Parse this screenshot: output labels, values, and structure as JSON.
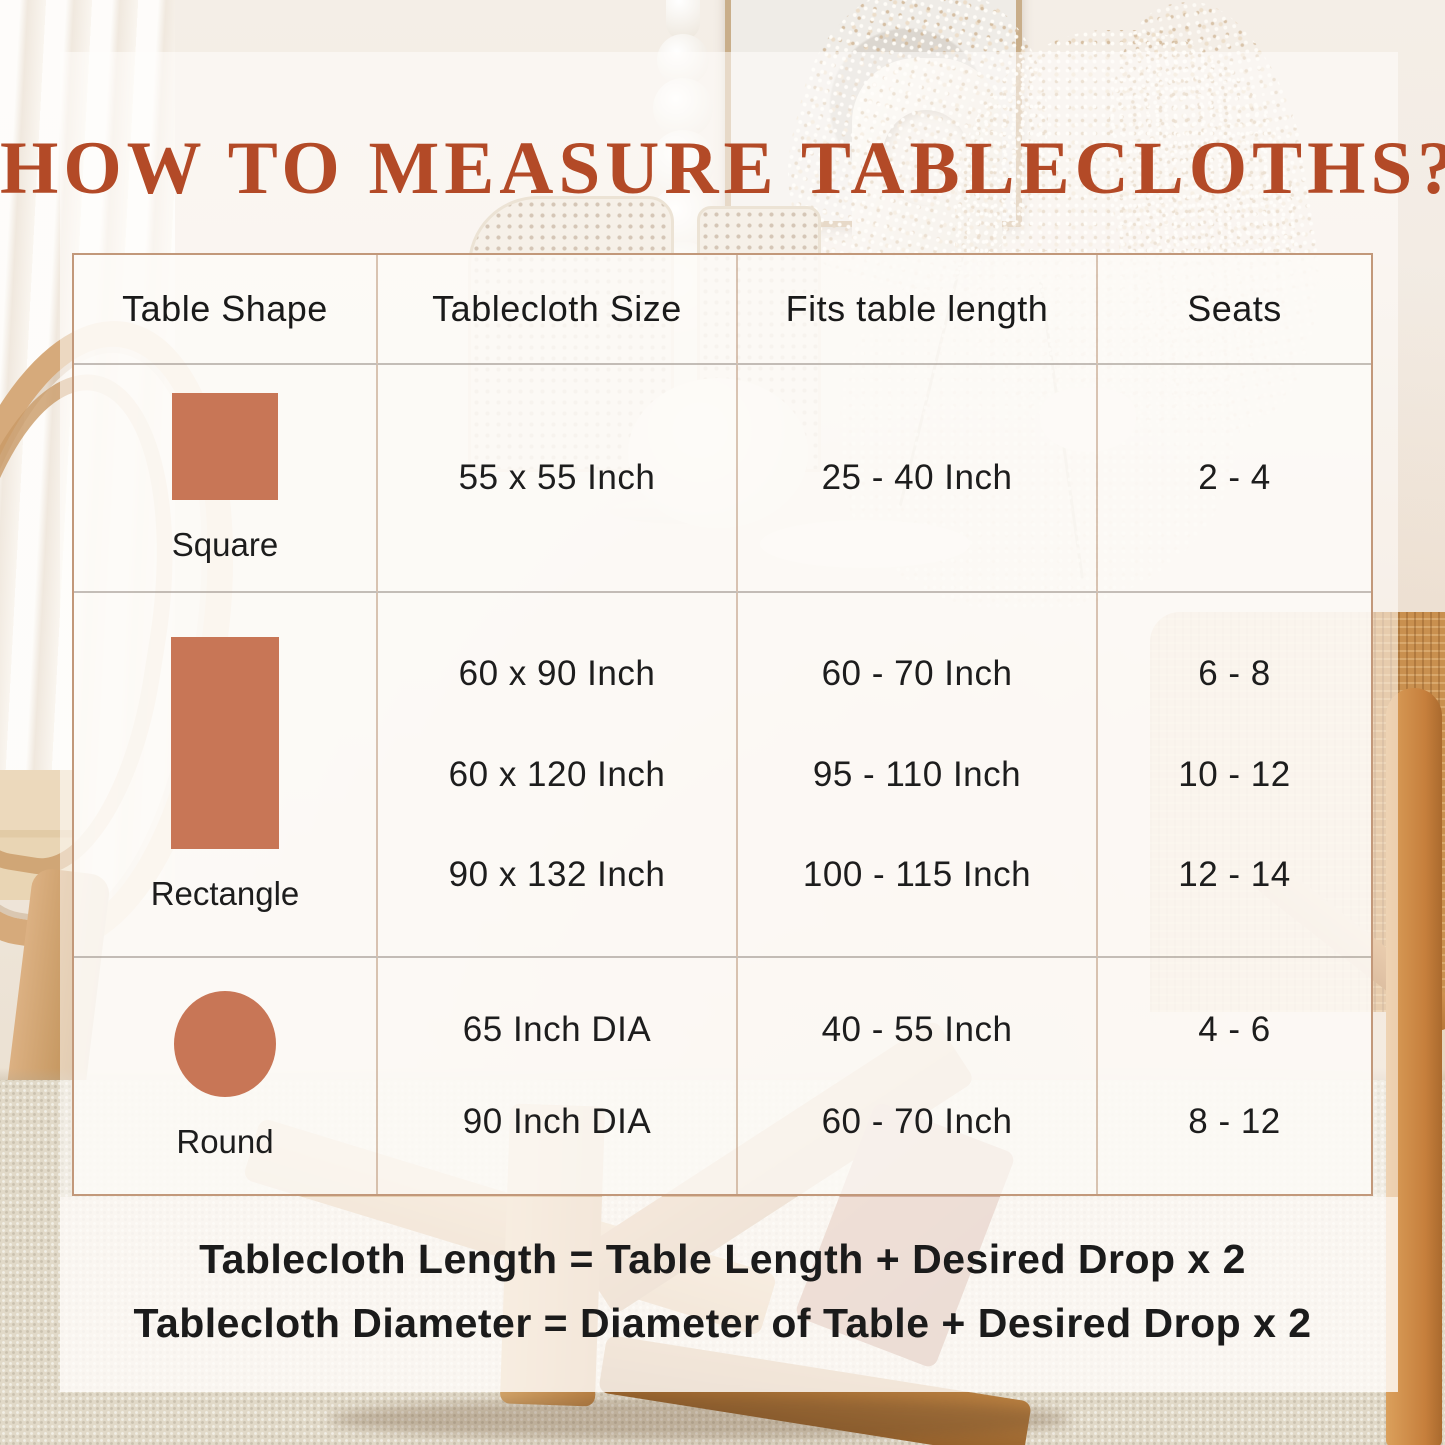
{
  "title": "HOW TO MEASURE TABLECLOTHS?",
  "colors": {
    "title_text": "#b34a27",
    "shape_swatch": "#c87656",
    "table_border": "#c2987a",
    "body_text": "#1d1d1d",
    "panel_background": "#fdfaf7"
  },
  "chart_data": {
    "type": "table",
    "title": "HOW TO MEASURE TABLECLOTHS?",
    "columns": [
      "Table Shape",
      "Tablecloth Size",
      "Fits table length",
      "Seats"
    ],
    "rows": [
      {
        "shape": "Square",
        "sizes": [
          "55 x 55 Inch"
        ],
        "fits": [
          "25 - 40 Inch"
        ],
        "seats": [
          "2 - 4"
        ]
      },
      {
        "shape": "Rectangle",
        "sizes": [
          "60 x 90 Inch",
          "60 x 120 Inch",
          "90 x 132 Inch"
        ],
        "fits": [
          "60 - 70 Inch",
          "95 - 110 Inch",
          "100 - 115 Inch"
        ],
        "seats": [
          "6 - 8",
          "10 - 12",
          "12 - 14"
        ]
      },
      {
        "shape": "Round",
        "sizes": [
          "65 Inch DIA",
          "90 Inch DIA"
        ],
        "fits": [
          "40 - 55 Inch",
          "60 - 70 Inch"
        ],
        "seats": [
          "4 - 6",
          "8 - 12"
        ]
      }
    ]
  },
  "footer": {
    "line1": "Tablecloth Length = Table Length + Desired Drop x 2",
    "line2": "Tablecloth Diameter = Diameter of Table + Desired Drop x 2"
  }
}
